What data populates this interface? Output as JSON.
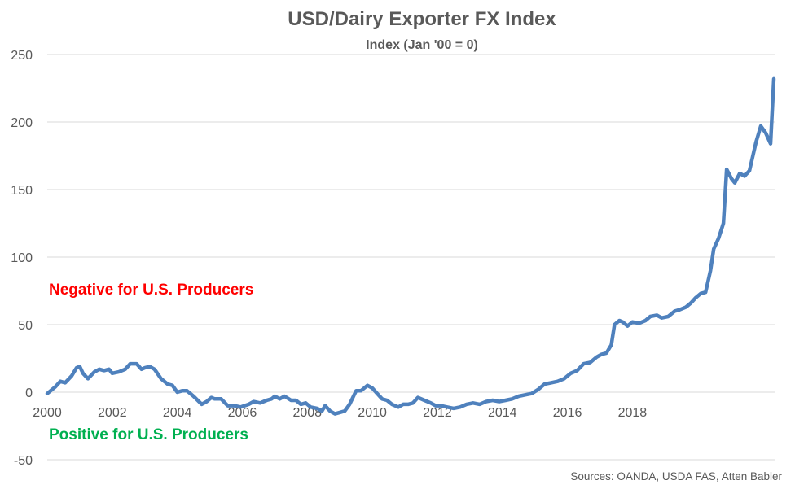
{
  "chart_data": {
    "type": "line",
    "title": "USD/Dairy Exporter FX Index",
    "subtitle": "Index (Jan '00 = 0)",
    "ylim": [
      -50,
      250
    ],
    "y_ticks": [
      "250",
      "200",
      "150",
      "100",
      "50",
      "0",
      "-50"
    ],
    "x_ticks": [
      "2000",
      "2002",
      "2004",
      "2006",
      "2008",
      "2010",
      "2012",
      "2014",
      "2016",
      "2018"
    ],
    "grid": true,
    "annotations": {
      "negative": "Negative for U.S. Producers",
      "positive": "Positive for U.S. Producers"
    },
    "source": "Sources: OANDA, USDA FAS, Atten Babler",
    "line_color": "#4f81bd",
    "series": [
      {
        "points": [
          [
            2000.0,
            -1
          ],
          [
            2000.25,
            4
          ],
          [
            2000.4,
            8
          ],
          [
            2000.55,
            7
          ],
          [
            2000.75,
            12
          ],
          [
            2000.9,
            18
          ],
          [
            2001.0,
            19
          ],
          [
            2001.1,
            14
          ],
          [
            2001.25,
            10
          ],
          [
            2001.45,
            15
          ],
          [
            2001.6,
            17
          ],
          [
            2001.75,
            16
          ],
          [
            2001.9,
            17
          ],
          [
            2002.0,
            14
          ],
          [
            2002.2,
            15
          ],
          [
            2002.4,
            17
          ],
          [
            2002.55,
            21
          ],
          [
            2002.75,
            21
          ],
          [
            2002.9,
            17
          ],
          [
            2003.0,
            18
          ],
          [
            2003.15,
            19
          ],
          [
            2003.3,
            17
          ],
          [
            2003.5,
            10
          ],
          [
            2003.7,
            6
          ],
          [
            2003.85,
            5
          ],
          [
            2004.0,
            0
          ],
          [
            2004.15,
            1
          ],
          [
            2004.3,
            1
          ],
          [
            2004.5,
            -3
          ],
          [
            2004.75,
            -9
          ],
          [
            2004.9,
            -7
          ],
          [
            2005.05,
            -4
          ],
          [
            2005.15,
            -5
          ],
          [
            2005.35,
            -5
          ],
          [
            2005.55,
            -10
          ],
          [
            2005.75,
            -10
          ],
          [
            2005.95,
            -11
          ],
          [
            2006.2,
            -9
          ],
          [
            2006.35,
            -7
          ],
          [
            2006.55,
            -8
          ],
          [
            2006.75,
            -6
          ],
          [
            2006.9,
            -5
          ],
          [
            2007.0,
            -3
          ],
          [
            2007.15,
            -5
          ],
          [
            2007.3,
            -3
          ],
          [
            2007.5,
            -6
          ],
          [
            2007.65,
            -6
          ],
          [
            2007.8,
            -9
          ],
          [
            2007.95,
            -8
          ],
          [
            2008.1,
            -11
          ],
          [
            2008.3,
            -12
          ],
          [
            2008.45,
            -14
          ],
          [
            2008.55,
            -10
          ],
          [
            2008.7,
            -14
          ],
          [
            2008.85,
            -16
          ],
          [
            2009.0,
            -15
          ],
          [
            2009.15,
            -14
          ],
          [
            2009.3,
            -9
          ],
          [
            2009.5,
            1
          ],
          [
            2009.65,
            1
          ],
          [
            2009.85,
            5
          ],
          [
            2010.0,
            3
          ],
          [
            2010.15,
            -1
          ],
          [
            2010.3,
            -5
          ],
          [
            2010.45,
            -6
          ],
          [
            2010.6,
            -9
          ],
          [
            2010.8,
            -11
          ],
          [
            2010.95,
            -9
          ],
          [
            2011.1,
            -9
          ],
          [
            2011.25,
            -8
          ],
          [
            2011.4,
            -4
          ],
          [
            2011.6,
            -6
          ],
          [
            2011.8,
            -8
          ],
          [
            2011.95,
            -10
          ],
          [
            2012.1,
            -10
          ],
          [
            2012.3,
            -11
          ],
          [
            2012.5,
            -12
          ],
          [
            2012.7,
            -11
          ],
          [
            2012.9,
            -9
          ],
          [
            2013.1,
            -8
          ],
          [
            2013.3,
            -9
          ],
          [
            2013.5,
            -7
          ],
          [
            2013.7,
            -6
          ],
          [
            2013.9,
            -7
          ],
          [
            2014.1,
            -6
          ],
          [
            2014.3,
            -5
          ],
          [
            2014.5,
            -3
          ],
          [
            2014.7,
            -2
          ],
          [
            2014.9,
            -1
          ],
          [
            2015.1,
            2
          ],
          [
            2015.3,
            6
          ],
          [
            2015.5,
            7
          ],
          [
            2015.7,
            8
          ],
          [
            2015.9,
            10
          ],
          [
            2016.1,
            14
          ],
          [
            2016.3,
            16
          ],
          [
            2016.5,
            21
          ],
          [
            2016.7,
            22
          ],
          [
            2016.9,
            26
          ],
          [
            2017.05,
            28
          ],
          [
            2017.2,
            29
          ],
          [
            2017.35,
            35
          ],
          [
            2017.45,
            50
          ],
          [
            2017.6,
            53
          ],
          [
            2017.7,
            52
          ],
          [
            2017.85,
            49
          ],
          [
            2018.0,
            52
          ],
          [
            2018.2,
            51
          ],
          [
            2018.4,
            53
          ],
          [
            2018.55,
            56
          ],
          [
            2018.75,
            57
          ],
          [
            2018.9,
            55
          ],
          [
            2019.1,
            56
          ],
          [
            2019.3,
            60
          ],
          [
            2019.45,
            61
          ],
          [
            2019.65,
            63
          ],
          [
            2019.8,
            66
          ],
          [
            2019.95,
            70
          ],
          [
            2020.1,
            73
          ],
          [
            2020.25,
            74
          ],
          [
            2020.4,
            90
          ],
          [
            2020.5,
            106
          ],
          [
            2020.65,
            114
          ],
          [
            2020.8,
            125
          ],
          [
            2020.9,
            165
          ],
          [
            2021.05,
            158
          ],
          [
            2021.15,
            155
          ],
          [
            2021.3,
            162
          ],
          [
            2021.45,
            160
          ],
          [
            2021.6,
            164
          ],
          [
            2021.8,
            185
          ],
          [
            2021.95,
            197
          ],
          [
            2022.1,
            192
          ],
          [
            2022.25,
            184
          ],
          [
            2022.35,
            232
          ]
        ]
      }
    ]
  }
}
